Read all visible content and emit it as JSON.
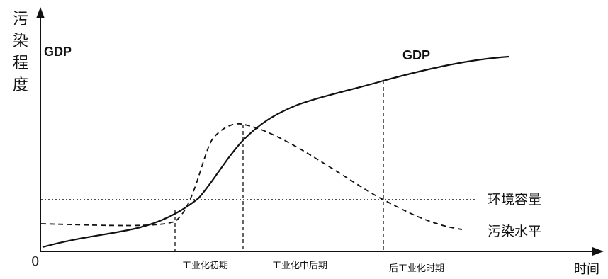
{
  "y_axis_label": "污染程度",
  "x_axis_label": "时间",
  "origin_label": "0",
  "curves": {
    "gdp_label_left": "GDP",
    "gdp_label_right": "GDP",
    "capacity_label": "环境容量",
    "pollution_label": "污染水平"
  },
  "periods": {
    "early": "工业化初期",
    "mid_late": "工业化中后期",
    "post": "后工业化时期"
  },
  "colors": {
    "ink": "#111111",
    "background": "#ffffff"
  }
}
